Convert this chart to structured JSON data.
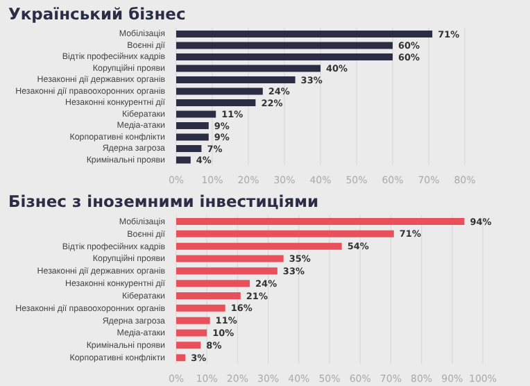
{
  "chart_data": [
    {
      "type": "bar",
      "orientation": "horizontal",
      "title": "Український бізнес",
      "categories": [
        "Мобілізація",
        "Воєнні дії",
        "Відтік професійних кадрів",
        "Корупційні прояви",
        "Незаконні дії державних органів",
        "Незаконні дії правоохоронних органів",
        "Незаконні конкурентні дії",
        "Кібератаки",
        "Медіа-атаки",
        "Корпоративні конфлікти",
        "Ядерна загроза",
        "Кримінальні прояви"
      ],
      "values": [
        71,
        60,
        60,
        40,
        33,
        24,
        22,
        11,
        9,
        9,
        7,
        4
      ],
      "value_labels": [
        "71%",
        "60%",
        "60%",
        "40%",
        "33%",
        "24%",
        "22%",
        "11%",
        "9%",
        "9%",
        "7%",
        "4%"
      ],
      "color": "#2b2d45",
      "xlim": [
        0,
        80
      ],
      "xticks": [
        {
          "value": 0,
          "label": "0%"
        },
        {
          "value": 10,
          "label": "10%"
        },
        {
          "value": 20,
          "label": "20%"
        },
        {
          "value": 30,
          "label": "30%"
        },
        {
          "value": 40,
          "label": "40%"
        },
        {
          "value": 50,
          "label": "50%"
        },
        {
          "value": 60,
          "label": "60%"
        },
        {
          "value": 70,
          "label": "70%"
        },
        {
          "value": 80,
          "label": "80%"
        }
      ],
      "grid": "x"
    },
    {
      "type": "bar",
      "orientation": "horizontal",
      "title": "Бізнес з іноземними інвестиціями",
      "categories": [
        "Мобілізація",
        "Воєнні дії",
        "Відтік професійних кадрів",
        "Корупційні прояви",
        "Незаконні дії державних органів",
        "Незаконні конкурентні дії",
        "Кібератаки",
        "Незаконні дії правоохоронних органів",
        "Ядерна загроза",
        "Медіа-атаки",
        "Кримінальні прояви",
        "Корпоративні конфлікти"
      ],
      "values": [
        94,
        71,
        54,
        35,
        33,
        24,
        21,
        16,
        11,
        10,
        8,
        3
      ],
      "value_labels": [
        "94%",
        "71%",
        "54%",
        "35%",
        "33%",
        "24%",
        "21%",
        "16%",
        "11%",
        "10%",
        "8%",
        "3%"
      ],
      "color": "#e8505b",
      "xlim": [
        0,
        100
      ],
      "xticks": [
        {
          "value": 0,
          "label": "0%"
        },
        {
          "value": 10,
          "label": "10%"
        },
        {
          "value": 20,
          "label": "20%"
        },
        {
          "value": 30,
          "label": "30%"
        },
        {
          "value": 40,
          "label": "40%"
        },
        {
          "value": 50,
          "label": "50%"
        },
        {
          "value": 60,
          "label": "60%"
        },
        {
          "value": 70,
          "label": "70%"
        },
        {
          "value": 80,
          "label": "80%"
        },
        {
          "value": 90,
          "label": "90%"
        },
        {
          "value": 100,
          "label": "100%"
        }
      ],
      "grid": "x"
    }
  ]
}
